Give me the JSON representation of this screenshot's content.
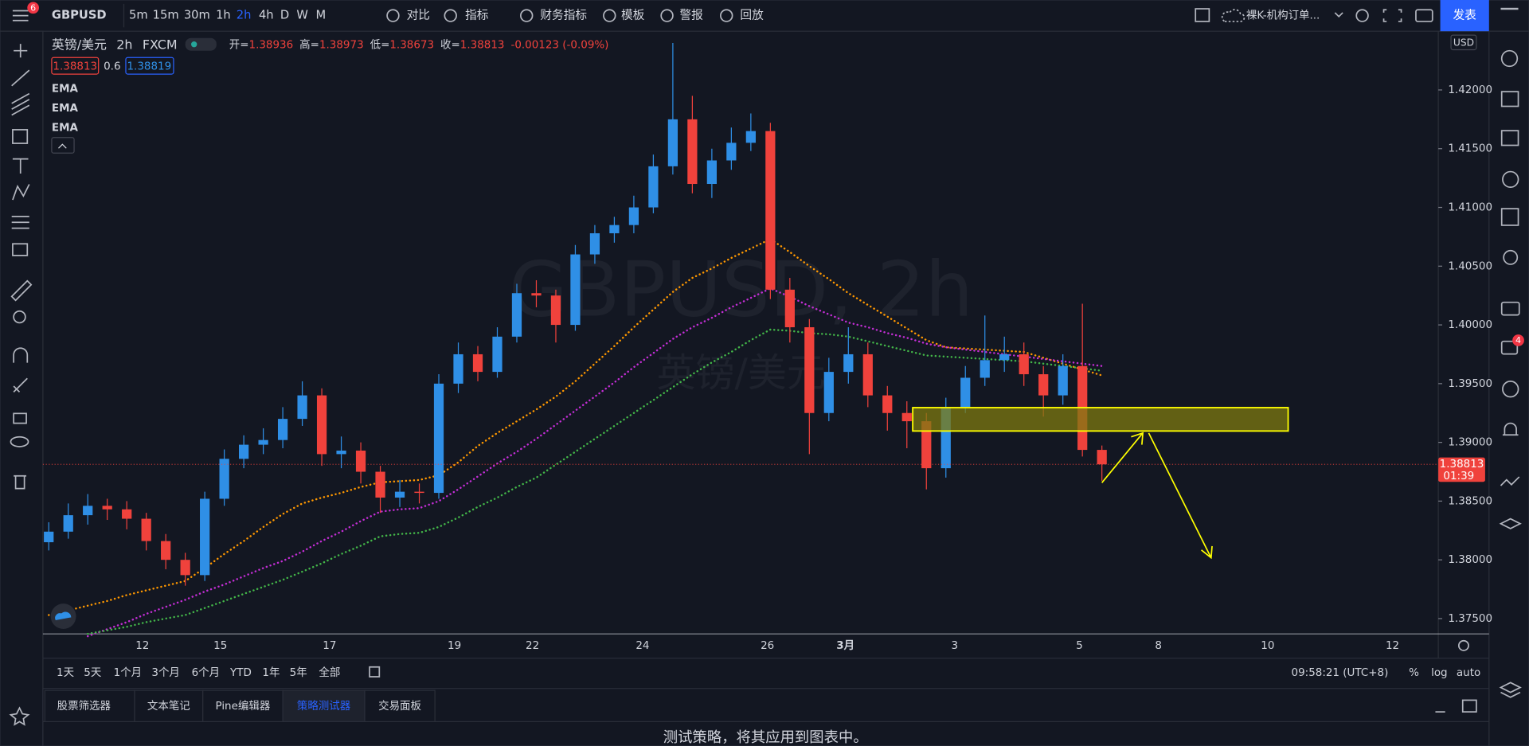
{
  "toolbar": {
    "symbol": "GBPUSD",
    "badge": "6",
    "intervals": [
      "5m",
      "15m",
      "30m",
      "1h",
      "2h",
      "4h",
      "D",
      "W",
      "M"
    ],
    "buttons": [
      "对比",
      "指标",
      "财务指标",
      "模板",
      "警报",
      "回放"
    ],
    "layout_name": "裸K-机构订单...",
    "publish": "发表"
  },
  "legend": {
    "symbol": "英镑/美元",
    "interval": "2h",
    "exchange": "FXCM",
    "open_label": "开=",
    "open": "1.38936",
    "high_label": "高=",
    "high": "1.38973",
    "low_label": "低=",
    "low": "1.38673",
    "close_label": "收=",
    "close": "1.38813",
    "change": "-0.00123 (-0.09%)",
    "bid": "1.38813",
    "spread": "0.6",
    "ask": "1.38819"
  },
  "chart_data": {
    "type": "candlestick",
    "watermark": "GBPUSD, 2h",
    "watermark_sub": "英镑/美元",
    "currency": "USD",
    "last_price_label": "1.38813",
    "countdown": "01:39",
    "up_color": "#2f8fe6",
    "down_color": "#f0423c",
    "open": [
      1.3815,
      1.3824,
      1.3838,
      1.3846,
      1.3843,
      1.3835,
      1.3816,
      1.38,
      1.3787,
      1.3852,
      1.3886,
      1.3898,
      1.3902,
      1.392,
      1.394,
      1.389,
      1.3893,
      1.3875,
      1.3853,
      1.3858,
      1.3857,
      1.395,
      1.3975,
      1.396,
      1.399,
      1.4027,
      1.4025,
      1.4,
      1.406,
      1.4078,
      1.4085,
      1.41,
      1.4135,
      1.4175,
      1.412,
      1.414,
      1.4155,
      1.4165,
      1.403,
      1.3998,
      1.3925,
      1.396,
      1.3975,
      1.394,
      1.3925,
      1.3918,
      1.3878,
      1.393,
      1.3955,
      1.397,
      1.3975,
      1.3958,
      1.394,
      1.3965,
      1.38936
    ],
    "high": [
      1.3832,
      1.3848,
      1.3856,
      1.3852,
      1.385,
      1.384,
      1.3822,
      1.3806,
      1.3858,
      1.3894,
      1.3906,
      1.3912,
      1.393,
      1.3952,
      1.3946,
      1.3905,
      1.39,
      1.388,
      1.3868,
      1.3865,
      1.3958,
      1.3985,
      1.3982,
      1.3998,
      1.4035,
      1.4038,
      1.403,
      1.4068,
      1.4085,
      1.4092,
      1.411,
      1.4145,
      1.424,
      1.4195,
      1.415,
      1.4168,
      1.418,
      1.4172,
      1.404,
      1.4005,
      1.3972,
      1.3998,
      1.3985,
      1.3948,
      1.3935,
      1.3925,
      1.3938,
      1.3965,
      1.4008,
      1.399,
      1.3985,
      1.3965,
      1.3975,
      1.4018,
      1.38973
    ],
    "low": [
      1.3808,
      1.3818,
      1.383,
      1.3834,
      1.3826,
      1.3808,
      1.3792,
      1.3778,
      1.3782,
      1.3846,
      1.3878,
      1.389,
      1.3895,
      1.3914,
      1.388,
      1.3878,
      1.3865,
      1.384,
      1.3845,
      1.3848,
      1.3852,
      1.3942,
      1.3952,
      1.3955,
      1.3985,
      1.4015,
      1.3985,
      1.3995,
      1.4052,
      1.407,
      1.4078,
      1.4095,
      1.4128,
      1.4112,
      1.4108,
      1.4132,
      1.4148,
      1.4022,
      1.3985,
      1.389,
      1.3918,
      1.395,
      1.393,
      1.391,
      1.3895,
      1.386,
      1.387,
      1.3925,
      1.3948,
      1.396,
      1.3948,
      1.3922,
      1.3932,
      1.3888,
      1.38673
    ],
    "close": [
      1.3824,
      1.3838,
      1.3846,
      1.3843,
      1.3835,
      1.3816,
      1.38,
      1.3787,
      1.3852,
      1.3886,
      1.3898,
      1.3902,
      1.392,
      1.394,
      1.389,
      1.3893,
      1.3875,
      1.3853,
      1.3858,
      1.3857,
      1.395,
      1.3975,
      1.396,
      1.399,
      1.4027,
      1.4025,
      1.4,
      1.406,
      1.4078,
      1.4085,
      1.41,
      1.4135,
      1.4175,
      1.412,
      1.414,
      1.4155,
      1.4165,
      1.403,
      1.3998,
      1.3925,
      1.396,
      1.3975,
      1.394,
      1.3925,
      1.3918,
      1.3878,
      1.393,
      1.3955,
      1.397,
      1.3975,
      1.3958,
      1.394,
      1.3965,
      1.38936,
      1.38813
    ],
    "series": [
      {
        "name": "EMA",
        "color": "#ff9800",
        "values": [
          1.3753,
          1.3757,
          1.3761,
          1.3765,
          1.377,
          1.3774,
          1.3778,
          1.3782,
          1.3793,
          1.3805,
          1.3816,
          1.3828,
          1.3839,
          1.3848,
          1.3853,
          1.3857,
          1.3862,
          1.3866,
          1.3867,
          1.3868,
          1.3872,
          1.3883,
          1.3897,
          1.3908,
          1.3918,
          1.3928,
          1.3939,
          1.3952,
          1.3967,
          1.3982,
          1.3998,
          1.4013,
          1.4028,
          1.404,
          1.4048,
          1.4057,
          1.4065,
          1.4073,
          1.4062,
          1.405,
          1.4039,
          1.4027,
          1.4017,
          1.4007,
          1.3997,
          1.3987,
          1.3981,
          1.398,
          1.3979,
          1.3978,
          1.3977,
          1.3972,
          1.3967,
          1.3962,
          1.3957
        ]
      },
      {
        "name": "EMA",
        "color": "#c42ed6",
        "values": [
          null,
          null,
          1.3735,
          1.3741,
          1.3747,
          1.3754,
          1.376,
          1.3766,
          1.3773,
          1.3779,
          1.3786,
          1.3793,
          1.3799,
          1.3807,
          1.3816,
          1.3824,
          1.3833,
          1.3841,
          1.3843,
          1.3844,
          1.385,
          1.386,
          1.3871,
          1.3882,
          1.3892,
          1.3903,
          1.3915,
          1.3927,
          1.3939,
          1.3951,
          1.3964,
          1.3976,
          1.3988,
          1.3998,
          1.4006,
          1.4015,
          1.4023,
          1.4031,
          1.4024,
          1.4016,
          1.4009,
          1.4002,
          1.3998,
          1.3993,
          1.3989,
          1.3984,
          1.3981,
          1.3979,
          1.3977,
          1.3975,
          1.3973,
          1.3971,
          1.3969,
          1.3967,
          1.3965
        ]
      },
      {
        "name": "EMA",
        "color": "#43b649",
        "values": [
          null,
          null,
          1.3737,
          1.374,
          1.3743,
          1.3747,
          1.375,
          1.3753,
          1.3759,
          1.3765,
          1.3771,
          1.3777,
          1.3783,
          1.379,
          1.3797,
          1.3805,
          1.3812,
          1.382,
          1.3822,
          1.3823,
          1.3828,
          1.3836,
          1.3845,
          1.3853,
          1.3862,
          1.387,
          1.3881,
          1.3892,
          1.3903,
          1.3914,
          1.3925,
          1.3936,
          1.3947,
          1.3958,
          1.3968,
          1.3977,
          1.3987,
          1.3996,
          1.3995,
          1.3993,
          1.3992,
          1.399,
          1.3986,
          1.3982,
          1.3978,
          1.3974,
          1.3973,
          1.3972,
          1.3971,
          1.397,
          1.3969,
          1.3967,
          1.3965,
          1.3963,
          1.3961
        ]
      }
    ],
    "ylim": [
      1.3737,
      1.425
    ],
    "yticks": [
      {
        "value": 1.42,
        "label": "1.42000"
      },
      {
        "value": 1.415,
        "label": "1.41500"
      },
      {
        "value": 1.41,
        "label": "1.41000"
      },
      {
        "value": 1.405,
        "label": "1.40500"
      },
      {
        "value": 1.4,
        "label": "1.40000"
      },
      {
        "value": 1.395,
        "label": "1.39500"
      },
      {
        "value": 1.39,
        "label": "1.39000"
      },
      {
        "value": 1.385,
        "label": "1.38500"
      },
      {
        "value": 1.38,
        "label": "1.38000"
      },
      {
        "value": 1.375,
        "label": "1.37500"
      }
    ],
    "time_labels": [
      "12",
      "15",
      "17",
      "19",
      "22",
      "24",
      "26",
      "3月",
      "3",
      "5",
      "8",
      "10",
      "12"
    ]
  },
  "range_bar": {
    "ranges": [
      "1天",
      "5天",
      "1个月",
      "3个月",
      "6个月",
      "YTD",
      "1年",
      "5年",
      "全部"
    ],
    "clock": "09:58:21 (UTC+8)",
    "percent": "%",
    "log": "log",
    "auto": "auto"
  },
  "bottom_panel": {
    "tabs": [
      "股票筛选器",
      "文本笔记",
      "Pine编辑器",
      "策略测试器",
      "交易面板"
    ],
    "message": "测试策略，将其应用到图表中。"
  },
  "sidebar": {
    "notification_badge": "4"
  }
}
